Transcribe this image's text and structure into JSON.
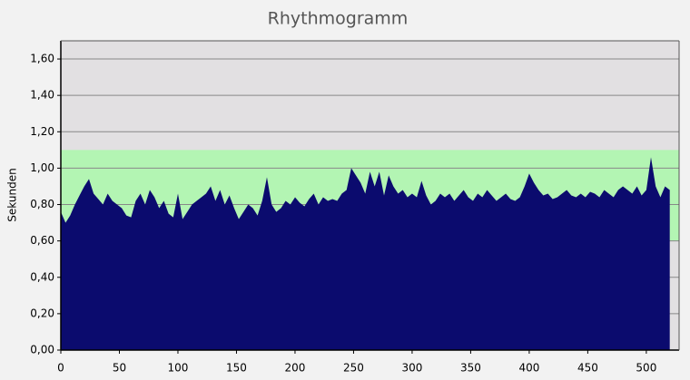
{
  "chart_data": {
    "type": "area",
    "title": "Rhythmogramm",
    "y_label": "Sekunden",
    "color": "#0b0b6e",
    "plot_background": "#e2e0e2",
    "band_color": "#b3f5b3",
    "band": [
      0.6,
      1.1
    ],
    "grid": true,
    "xlim": [
      0,
      528
    ],
    "ylim": [
      0,
      1.7
    ],
    "xticks": [
      0,
      50,
      100,
      150,
      200,
      250,
      300,
      350,
      400,
      450,
      500
    ],
    "yticks": [
      {
        "value": 0,
        "label": "0,00"
      },
      {
        "value": 0.2,
        "label": "0,20"
      },
      {
        "value": 0.4,
        "label": "0,40"
      },
      {
        "value": 0.6,
        "label": "0,60"
      },
      {
        "value": 0.8,
        "label": "0,80"
      },
      {
        "value": 1.0,
        "label": "1,00"
      },
      {
        "value": 1.2,
        "label": "1,20"
      },
      {
        "value": 1.4,
        "label": "1,40"
      },
      {
        "value": 1.6,
        "label": "1,60"
      }
    ],
    "x": [
      0,
      4,
      8,
      12,
      16,
      20,
      24,
      28,
      32,
      36,
      40,
      44,
      48,
      52,
      56,
      60,
      64,
      68,
      72,
      76,
      80,
      84,
      88,
      92,
      96,
      100,
      104,
      108,
      112,
      116,
      120,
      124,
      128,
      132,
      136,
      140,
      144,
      148,
      152,
      156,
      160,
      164,
      168,
      172,
      176,
      180,
      184,
      188,
      192,
      196,
      200,
      204,
      208,
      212,
      216,
      220,
      224,
      228,
      232,
      236,
      240,
      244,
      248,
      252,
      256,
      260,
      264,
      268,
      272,
      276,
      280,
      284,
      288,
      292,
      296,
      300,
      304,
      308,
      312,
      316,
      320,
      324,
      328,
      332,
      336,
      340,
      344,
      348,
      352,
      356,
      360,
      364,
      368,
      372,
      376,
      380,
      384,
      388,
      392,
      396,
      400,
      404,
      408,
      412,
      416,
      420,
      424,
      428,
      432,
      436,
      440,
      444,
      448,
      452,
      456,
      460,
      464,
      468,
      472,
      476,
      480,
      484,
      488,
      492,
      496,
      500,
      504,
      508,
      512,
      516,
      520
    ],
    "values": [
      0.76,
      0.7,
      0.74,
      0.8,
      0.85,
      0.9,
      0.94,
      0.86,
      0.83,
      0.8,
      0.86,
      0.82,
      0.8,
      0.78,
      0.74,
      0.73,
      0.82,
      0.86,
      0.8,
      0.88,
      0.84,
      0.78,
      0.82,
      0.75,
      0.73,
      0.86,
      0.72,
      0.76,
      0.8,
      0.82,
      0.84,
      0.86,
      0.9,
      0.82,
      0.88,
      0.8,
      0.85,
      0.78,
      0.72,
      0.76,
      0.8,
      0.78,
      0.74,
      0.82,
      0.95,
      0.8,
      0.76,
      0.78,
      0.82,
      0.8,
      0.84,
      0.81,
      0.79,
      0.83,
      0.86,
      0.8,
      0.84,
      0.82,
      0.83,
      0.82,
      0.86,
      0.88,
      1.0,
      0.96,
      0.92,
      0.86,
      0.98,
      0.9,
      0.98,
      0.85,
      0.96,
      0.9,
      0.86,
      0.88,
      0.84,
      0.86,
      0.84,
      0.93,
      0.85,
      0.8,
      0.82,
      0.86,
      0.84,
      0.86,
      0.82,
      0.85,
      0.88,
      0.84,
      0.82,
      0.86,
      0.84,
      0.88,
      0.85,
      0.82,
      0.84,
      0.86,
      0.83,
      0.82,
      0.84,
      0.9,
      0.97,
      0.92,
      0.88,
      0.85,
      0.86,
      0.83,
      0.84,
      0.86,
      0.88,
      0.85,
      0.84,
      0.86,
      0.84,
      0.87,
      0.86,
      0.84,
      0.88,
      0.86,
      0.84,
      0.88,
      0.9,
      0.88,
      0.86,
      0.9,
      0.85,
      0.88,
      1.06,
      0.9,
      0.84,
      0.9,
      0.88
    ]
  }
}
